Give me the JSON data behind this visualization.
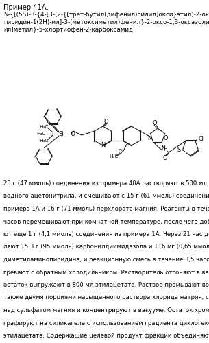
{
  "title": "Пример 41А.",
  "compound_lines": [
    "N-{[(5S)-3-{4-[3-(2-{[трет-бутил(дифенил)силил]окси}этил)-2-оксо-",
    "пиридин-1(2Н)-ил]-3-(метоксиметил)фенил}-2-оксо-1,3-оксазолидин-5-",
    "ил]метил}-5-хлортиофен-2-карбоксамид"
  ],
  "body_lines": [
    "25 г (47 ммоль) соединения из примера 40А растворяют в 500 мл без-",
    "водного ацетонитрила, и смешивают с 15 г (61 ммоль) соединения из",
    "примера 1А и 16 г (71 ммоль) перхлората магния. Реагенты в течение 5",
    "часов перемешивают при комнатной температуре, после чего добавля-",
    "ют еще 1 г (4,1 ммоль) соединения из примера 1А. Через 21 час добав-",
    "ляют 15,3 г (95 ммоль) карбонилдиимидазола и 116 мг (0,65 ммоль) 4-",
    "диметиламинопиридина, и реакционную смесь в течение 3,5 часов на-",
    "гревают с обратным холодильником. Растворитель отгоняют в вакууме,",
    "остаток выгружают в 800 мл этилацетата. Раствор промывают водой, а",
    "также двумя порциями насыщенного раствора хлорида натрия, сушат",
    "над сульфатом магния и концентрируют в вакууме. Остаток хромато-",
    "графируют на силикагеле с использованием градиента циклогексана и",
    "этилацетата. Содержащие целевой продукт фракции объединяют и кон-"
  ],
  "bg_color": "#ffffff",
  "text_color": "#000000",
  "lc": "#1a1a1a"
}
